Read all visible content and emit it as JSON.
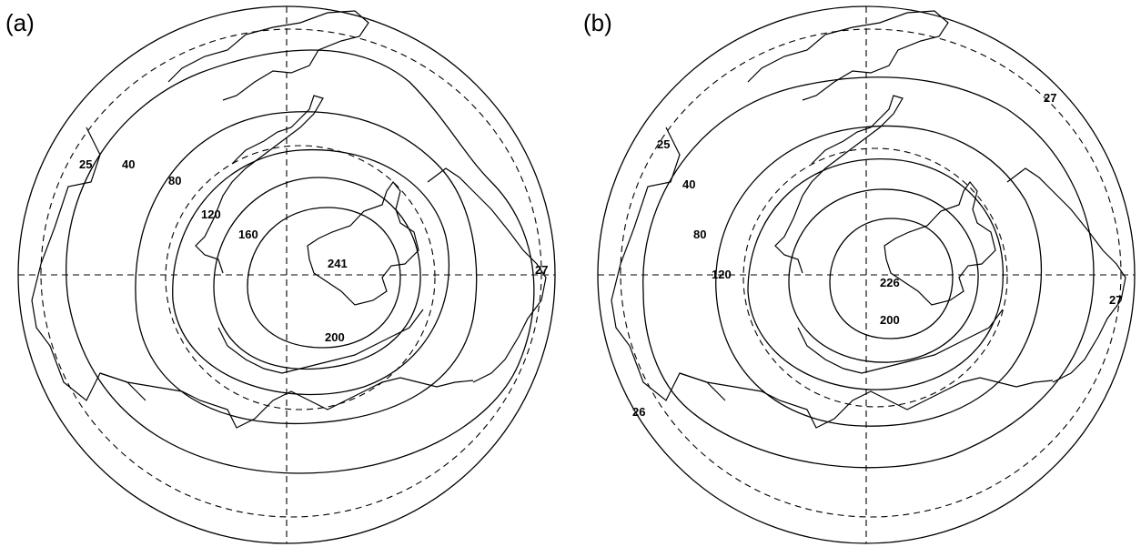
{
  "panels": [
    {
      "id": "a",
      "label": "(a)",
      "contour_labels": [
        "25",
        "40",
        "80",
        "120",
        "160",
        "241",
        "200",
        "27"
      ]
    },
    {
      "id": "b",
      "label": "(b)",
      "contour_labels": [
        "27",
        "25",
        "40",
        "80",
        "120",
        "226",
        "200",
        "27",
        "26"
      ]
    }
  ]
}
